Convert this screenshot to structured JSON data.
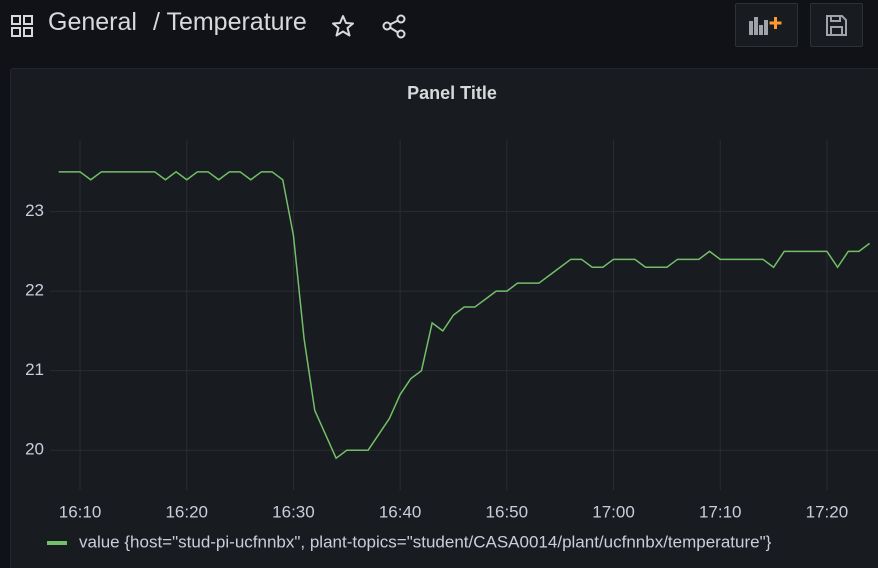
{
  "header": {
    "folder": "General",
    "title": "/ Temperature"
  },
  "chart_data": {
    "type": "line",
    "title": "Panel Title",
    "x": [
      "16:08",
      "16:09",
      "16:10",
      "16:11",
      "16:12",
      "16:13",
      "16:14",
      "16:15",
      "16:16",
      "16:17",
      "16:18",
      "16:19",
      "16:20",
      "16:21",
      "16:22",
      "16:23",
      "16:24",
      "16:25",
      "16:26",
      "16:27",
      "16:28",
      "16:29",
      "16:30",
      "16:31",
      "16:32",
      "16:33",
      "16:34",
      "16:35",
      "16:36",
      "16:37",
      "16:38",
      "16:39",
      "16:40",
      "16:41",
      "16:42",
      "16:43",
      "16:44",
      "16:45",
      "16:46",
      "16:47",
      "16:48",
      "16:49",
      "16:50",
      "16:51",
      "16:52",
      "16:53",
      "16:54",
      "16:55",
      "16:56",
      "16:57",
      "16:58",
      "16:59",
      "17:00",
      "17:01",
      "17:02",
      "17:03",
      "17:04",
      "17:05",
      "17:06",
      "17:07",
      "17:08",
      "17:09",
      "17:10",
      "17:11",
      "17:12",
      "17:13",
      "17:14",
      "17:15",
      "17:16",
      "17:17",
      "17:18",
      "17:19",
      "17:20",
      "17:21",
      "17:22",
      "17:23",
      "17:24"
    ],
    "series": [
      {
        "name": "value {host=\"stud-pi-ucfnnbx\", plant-topics=\"student/CASA0014/plant/ucfnnbx/temperature\"}",
        "color": "#73bf69",
        "values": [
          23.5,
          23.5,
          23.5,
          23.4,
          23.5,
          23.5,
          23.5,
          23.5,
          23.5,
          23.5,
          23.4,
          23.5,
          23.4,
          23.5,
          23.5,
          23.4,
          23.5,
          23.5,
          23.4,
          23.5,
          23.5,
          23.4,
          22.7,
          21.4,
          20.5,
          20.2,
          19.9,
          20.0,
          20.0,
          20.0,
          20.2,
          20.4,
          20.7,
          20.9,
          21.0,
          21.6,
          21.5,
          21.7,
          21.8,
          21.8,
          21.9,
          22.0,
          22.0,
          22.1,
          22.1,
          22.1,
          22.2,
          22.3,
          22.4,
          22.4,
          22.3,
          22.3,
          22.4,
          22.4,
          22.4,
          22.3,
          22.3,
          22.3,
          22.4,
          22.4,
          22.4,
          22.5,
          22.4,
          22.4,
          22.4,
          22.4,
          22.4,
          22.3,
          22.5,
          22.5,
          22.5,
          22.5,
          22.5,
          22.3,
          22.5,
          22.5,
          22.6
        ]
      }
    ],
    "xlim": [
      "16:08",
      "17:24"
    ],
    "xticks": [
      "16:10",
      "16:20",
      "16:30",
      "16:40",
      "16:50",
      "17:00",
      "17:10",
      "17:20"
    ],
    "ylim": [
      19.5,
      23.9
    ],
    "yticks": [
      20,
      21,
      22,
      23
    ],
    "grid": true,
    "legend": "bottom-left"
  }
}
